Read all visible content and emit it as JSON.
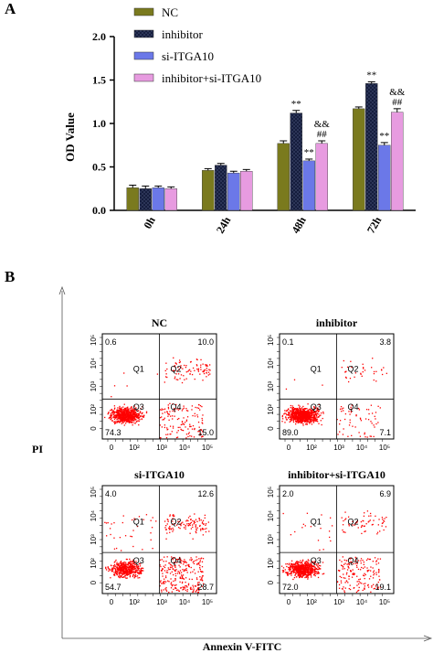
{
  "panel_a_label": "A",
  "panel_b_label": "B",
  "colors": {
    "NC": "#7a7a1e",
    "inhibitor": "#121a3a",
    "si-ITGA10": "#6b78e8",
    "inhibitor+si-ITGA10": "#e79be0",
    "dots": "#ff0000",
    "olive": "#8a8a2a"
  },
  "chart_data": [
    {
      "type": "bar",
      "title": "",
      "ylabel": "OD Value",
      "xlabel": "",
      "categories": [
        "0h",
        "24h",
        "48h",
        "72h"
      ],
      "ylim": [
        0,
        2.0
      ],
      "yticks": [
        "0.0",
        "0.5",
        "1.0",
        "1.5",
        "2.0"
      ],
      "legend_position": "top-right",
      "series": [
        {
          "name": "NC",
          "values": [
            0.26,
            0.46,
            0.77,
            1.17
          ],
          "errors": [
            0.03,
            0.02,
            0.03,
            0.02
          ]
        },
        {
          "name": "inhibitor",
          "values": [
            0.25,
            0.52,
            1.12,
            1.46
          ],
          "errors": [
            0.03,
            0.02,
            0.03,
            0.02
          ]
        },
        {
          "name": "si-ITGA10",
          "values": [
            0.26,
            0.43,
            0.57,
            0.75
          ],
          "errors": [
            0.02,
            0.02,
            0.02,
            0.03
          ]
        },
        {
          "name": "inhibitor+si-ITGA10",
          "values": [
            0.25,
            0.45,
            0.77,
            1.13
          ],
          "errors": [
            0.02,
            0.02,
            0.03,
            0.04
          ]
        }
      ],
      "annotations": [
        {
          "category": "48h",
          "series": "inhibitor",
          "lines": [
            "**"
          ]
        },
        {
          "category": "48h",
          "series": "si-ITGA10",
          "lines": [
            "**"
          ]
        },
        {
          "category": "48h",
          "series": "inhibitor+si-ITGA10",
          "lines": [
            "&&",
            "##"
          ]
        },
        {
          "category": "72h",
          "series": "inhibitor",
          "lines": [
            "**"
          ]
        },
        {
          "category": "72h",
          "series": "si-ITGA10",
          "lines": [
            "**"
          ]
        },
        {
          "category": "72h",
          "series": "inhibitor+si-ITGA10",
          "lines": [
            "&&",
            "##"
          ]
        }
      ]
    },
    {
      "type": "scatter",
      "xlabel": "Annexin V-FITC",
      "ylabel": "PI",
      "x_ticks": [
        "0",
        "10²",
        "10³",
        "10⁴",
        "10⁵"
      ],
      "y_ticks": [
        "0",
        "10²",
        "10³",
        "10⁴",
        "10⁵"
      ],
      "gate_labels": [
        "Q1",
        "Q2",
        "Q3",
        "Q4"
      ],
      "plots": [
        {
          "title": "NC",
          "q1": "0.6",
          "q2": "10.0",
          "q3": "74.3",
          "q4": "15.0"
        },
        {
          "title": "inhibitor",
          "q1": "0.1",
          "q2": "3.8",
          "q3": "89.0",
          "q4": "7.1"
        },
        {
          "title": "si-ITGA10",
          "q1": "4.0",
          "q2": "12.6",
          "q3": "54.7",
          "q4": "28.7"
        },
        {
          "title": "inhibitor+si-ITGA10",
          "q1": "2.0",
          "q2": "6.9",
          "q3": "72.0",
          "q4": "19.1"
        }
      ]
    }
  ]
}
